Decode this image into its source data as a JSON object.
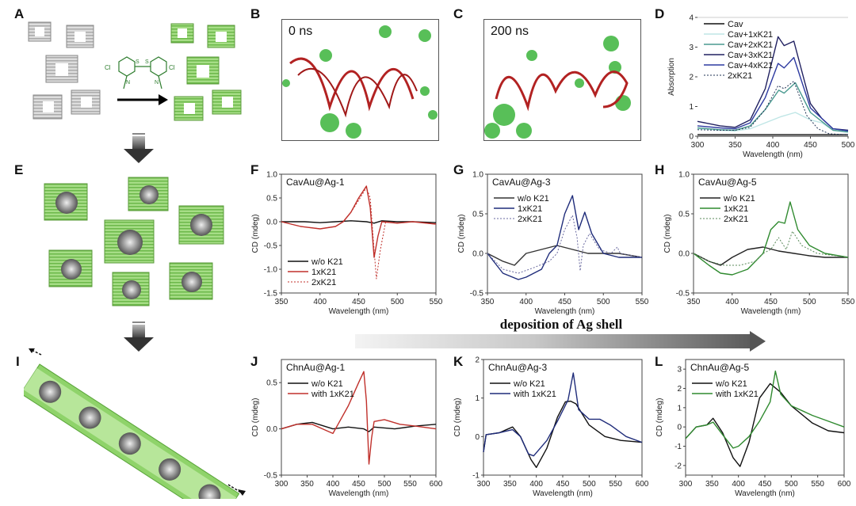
{
  "panel_letters": {
    "A": "A",
    "B": "B",
    "C": "C",
    "D": "D",
    "E": "E",
    "F": "F",
    "G": "G",
    "H": "H",
    "I": "I",
    "J": "J",
    "K": "K",
    "L": "L"
  },
  "simulations": {
    "B": {
      "label": "0 ns"
    },
    "C": {
      "label": "200 ns"
    }
  },
  "molecule": {
    "substituent_left": "Cl",
    "substituent_right": "Cl",
    "heteroatom": "S",
    "nitrogen": "N"
  },
  "deposition_arrow": {
    "label": "deposition of Ag shell"
  },
  "colors": {
    "black": "#111111",
    "red": "#c0302b",
    "navy": "#1f2c7a",
    "green": "#2f8a2f",
    "light_cyan": "#bfe6e6",
    "teal": "#4a9a90",
    "dark_navy": "#202060",
    "blue": "#2d3aa0",
    "green_cube": "#8fd36a"
  },
  "chart_data": [
    {
      "id": "D",
      "type": "line",
      "title": "",
      "xlabel": "Wavelength (nm)",
      "ylabel": "Absorption",
      "xlim": [
        300,
        500
      ],
      "ylim": [
        0,
        4
      ],
      "xticks": [
        300,
        350,
        400,
        450,
        500
      ],
      "yticks": [
        0,
        1,
        2,
        3,
        4
      ],
      "legend_position": "top-left",
      "series": [
        {
          "name": "Cav",
          "color": "#111111",
          "style": "solid",
          "x": [
            300,
            350,
            400,
            450,
            500
          ],
          "y": [
            0.05,
            0.05,
            0.05,
            0.05,
            0.05
          ]
        },
        {
          "name": "Cav+1xK21",
          "color": "#bfe6e6",
          "style": "solid",
          "x": [
            300,
            330,
            350,
            370,
            390,
            410,
            430,
            450,
            465,
            480,
            500
          ],
          "y": [
            0.25,
            0.2,
            0.18,
            0.25,
            0.45,
            0.65,
            0.8,
            0.55,
            0.45,
            0.2,
            0.12
          ]
        },
        {
          "name": "Cav+2xK21",
          "color": "#4a9a90",
          "style": "solid",
          "x": [
            300,
            330,
            350,
            370,
            390,
            408,
            415,
            430,
            450,
            465,
            480,
            500
          ],
          "y": [
            0.28,
            0.22,
            0.2,
            0.35,
            0.9,
            1.55,
            1.45,
            1.8,
            0.8,
            0.5,
            0.2,
            0.15
          ]
        },
        {
          "name": "Cav+3xK21",
          "color": "#202060",
          "style": "solid",
          "x": [
            300,
            330,
            350,
            370,
            390,
            407,
            415,
            428,
            450,
            465,
            480,
            500
          ],
          "y": [
            0.5,
            0.35,
            0.3,
            0.55,
            1.6,
            3.35,
            3.05,
            3.2,
            1.1,
            0.6,
            0.25,
            0.2
          ]
        },
        {
          "name": "Cav+4xK21",
          "color": "#2d3aa0",
          "style": "solid",
          "x": [
            300,
            330,
            350,
            370,
            390,
            407,
            415,
            428,
            450,
            465,
            480,
            500
          ],
          "y": [
            0.35,
            0.28,
            0.25,
            0.45,
            1.3,
            2.45,
            2.3,
            2.65,
            0.95,
            0.6,
            0.25,
            0.18
          ]
        },
        {
          "name": "2xK21",
          "color": "#223355",
          "style": "dotted",
          "x": [
            300,
            330,
            350,
            370,
            390,
            407,
            415,
            428,
            445,
            460,
            475,
            500
          ],
          "y": [
            0.22,
            0.2,
            0.2,
            0.3,
            0.9,
            1.7,
            1.6,
            1.85,
            0.7,
            0.25,
            0.08,
            0.05
          ]
        }
      ]
    },
    {
      "id": "F",
      "type": "line",
      "annotation": "CavAu@Ag-1",
      "xlabel": "Wavelength (nm)",
      "ylabel": "CD (mdeg)",
      "xlim": [
        350,
        550
      ],
      "ylim": [
        -1.5,
        1.0
      ],
      "xticks": [
        350,
        400,
        450,
        500,
        550
      ],
      "yticks": [
        -1.5,
        -1.0,
        -0.5,
        0.0,
        0.5,
        1.0
      ],
      "legend_position": "bottom-left",
      "series": [
        {
          "name": "w/o K21",
          "color": "#111111",
          "style": "solid",
          "x": [
            350,
            380,
            400,
            420,
            440,
            460,
            470,
            480,
            500,
            520,
            550
          ],
          "y": [
            0.0,
            0.0,
            -0.02,
            0.0,
            0.02,
            0.0,
            -0.03,
            0.02,
            0.0,
            0.0,
            -0.02
          ]
        },
        {
          "name": "1xK21",
          "color": "#c0302b",
          "style": "solid",
          "x": [
            350,
            375,
            400,
            420,
            430,
            440,
            450,
            460,
            465,
            470,
            475,
            480,
            500,
            520,
            550
          ],
          "y": [
            0.0,
            -0.1,
            -0.15,
            -0.1,
            0.0,
            0.2,
            0.5,
            0.75,
            0.3,
            -0.75,
            -0.3,
            0.0,
            -0.03,
            0.0,
            -0.05
          ]
        },
        {
          "name": "2xK21",
          "color": "#c0302b",
          "style": "dotted",
          "x": [
            350,
            375,
            400,
            420,
            430,
            440,
            450,
            460,
            465,
            470,
            473,
            478,
            485,
            500,
            520,
            550
          ],
          "y": [
            0.0,
            -0.1,
            -0.15,
            -0.1,
            0.0,
            0.2,
            0.45,
            0.72,
            0.5,
            -0.6,
            -1.2,
            -0.6,
            0.0,
            -0.03,
            0.0,
            -0.05
          ]
        }
      ]
    },
    {
      "id": "G",
      "type": "line",
      "annotation": "CavAu@Ag-3",
      "xlabel": "Wavelength (nm)",
      "ylabel": "CD (mdeg)",
      "xlim": [
        350,
        550
      ],
      "ylim": [
        -0.5,
        1.0
      ],
      "xticks": [
        350,
        400,
        450,
        500,
        550
      ],
      "yticks": [
        -0.5,
        0.0,
        0.5,
        1.0
      ],
      "legend_position": "top-left",
      "series": [
        {
          "name": "w/o K21",
          "color": "#333333",
          "style": "solid",
          "x": [
            350,
            370,
            385,
            400,
            420,
            440,
            460,
            480,
            500,
            520,
            550
          ],
          "y": [
            0.0,
            -0.1,
            -0.15,
            0.0,
            0.05,
            0.1,
            0.05,
            0.0,
            0.0,
            0.0,
            -0.05
          ]
        },
        {
          "name": "1xK21",
          "color": "#1f2c7a",
          "style": "solid",
          "x": [
            350,
            370,
            390,
            400,
            420,
            430,
            440,
            450,
            460,
            468,
            476,
            485,
            500,
            520,
            550
          ],
          "y": [
            0.0,
            -0.25,
            -0.33,
            -0.3,
            -0.2,
            0.0,
            0.1,
            0.5,
            0.73,
            0.3,
            0.52,
            0.25,
            0.0,
            -0.05,
            -0.05
          ]
        },
        {
          "name": "2xK21",
          "color": "#6a6aa0",
          "style": "dotted",
          "x": [
            350,
            370,
            390,
            410,
            430,
            440,
            450,
            460,
            466,
            470,
            474,
            482,
            495,
            510,
            518,
            522,
            550
          ],
          "y": [
            0.0,
            -0.2,
            -0.25,
            -0.18,
            -0.1,
            0.0,
            0.3,
            0.48,
            0.2,
            -0.22,
            0.1,
            0.25,
            0.05,
            0.0,
            0.08,
            0.0,
            -0.05
          ]
        }
      ]
    },
    {
      "id": "H",
      "type": "line",
      "annotation": "CavAu@Ag-5",
      "xlabel": "Wavelength (nm)",
      "ylabel": "CD (mdeg)",
      "xlim": [
        350,
        550
      ],
      "ylim": [
        -0.5,
        1.0
      ],
      "xticks": [
        350,
        400,
        450,
        500,
        550
      ],
      "yticks": [
        -0.5,
        0.0,
        0.5,
        1.0
      ],
      "legend_position": "top-left",
      "series": [
        {
          "name": "w/o K21",
          "color": "#222222",
          "style": "solid",
          "x": [
            350,
            370,
            385,
            400,
            420,
            440,
            460,
            480,
            500,
            520,
            550
          ],
          "y": [
            0.0,
            -0.1,
            -0.15,
            -0.05,
            0.05,
            0.08,
            0.03,
            0.0,
            -0.03,
            -0.05,
            -0.05
          ]
        },
        {
          "name": "1xK21",
          "color": "#2f8a2f",
          "style": "solid",
          "x": [
            350,
            370,
            385,
            400,
            420,
            440,
            450,
            460,
            468,
            475,
            485,
            500,
            520,
            550
          ],
          "y": [
            0.0,
            -0.15,
            -0.25,
            -0.27,
            -0.2,
            0.0,
            0.3,
            0.4,
            0.38,
            0.65,
            0.3,
            0.1,
            0.0,
            -0.05
          ]
        },
        {
          "name": "2xK21",
          "color": "#5a8a5a",
          "style": "dotted",
          "x": [
            350,
            370,
            390,
            410,
            430,
            440,
            450,
            460,
            470,
            478,
            490,
            510,
            550
          ],
          "y": [
            0.0,
            -0.1,
            -0.15,
            -0.15,
            -0.1,
            0.0,
            0.05,
            0.2,
            0.05,
            0.28,
            0.1,
            0.0,
            -0.05
          ]
        }
      ]
    },
    {
      "id": "J",
      "type": "line",
      "annotation": "ChnAu@Ag-1",
      "xlabel": "Wavelength (nm)",
      "ylabel": "CD (mdeg)",
      "xlim": [
        300,
        600
      ],
      "ylim": [
        -0.5,
        0.75
      ],
      "xticks": [
        300,
        350,
        400,
        450,
        500,
        550,
        600
      ],
      "yticks": [
        -0.5,
        0.0,
        0.5
      ],
      "legend_position": "top-left",
      "series": [
        {
          "name": "w/o K21",
          "color": "#111111",
          "style": "solid",
          "x": [
            300,
            330,
            360,
            400,
            430,
            460,
            470,
            480,
            520,
            560,
            600
          ],
          "y": [
            0.0,
            0.05,
            0.07,
            0.0,
            0.02,
            0.0,
            -0.03,
            0.02,
            0.0,
            0.03,
            0.05
          ]
        },
        {
          "name": "with 1xK21",
          "color": "#c0302b",
          "style": "solid",
          "x": [
            300,
            330,
            360,
            380,
            400,
            410,
            430,
            450,
            460,
            465,
            470,
            475,
            480,
            500,
            530,
            560,
            600
          ],
          "y": [
            0.0,
            0.05,
            0.05,
            0.0,
            -0.05,
            0.05,
            0.25,
            0.5,
            0.62,
            0.3,
            -0.38,
            -0.1,
            0.08,
            0.1,
            0.05,
            0.03,
            0.0
          ]
        }
      ]
    },
    {
      "id": "K",
      "type": "line",
      "annotation": "ChnAu@Ag-3",
      "xlabel": "Wavelength (nm)",
      "ylabel": "CD (mdeg)",
      "xlim": [
        300,
        600
      ],
      "ylim": [
        -1,
        2
      ],
      "xticks": [
        300,
        350,
        400,
        450,
        500,
        550,
        600
      ],
      "yticks": [
        -1,
        0,
        1,
        2
      ],
      "legend_position": "top-left",
      "series": [
        {
          "name": "w/o K21",
          "color": "#111111",
          "style": "solid",
          "x": [
            300,
            305,
            330,
            355,
            370,
            390,
            400,
            420,
            440,
            455,
            465,
            475,
            500,
            530,
            560,
            600
          ],
          "y": [
            -0.4,
            0.05,
            0.1,
            0.25,
            0.0,
            -0.6,
            -0.8,
            -0.3,
            0.5,
            0.9,
            0.92,
            0.85,
            0.3,
            0.0,
            -0.1,
            -0.15
          ]
        },
        {
          "name": "with 1xK21",
          "color": "#1f2c7a",
          "style": "solid",
          "x": [
            300,
            305,
            330,
            355,
            370,
            385,
            395,
            420,
            440,
            460,
            470,
            480,
            500,
            520,
            540,
            570,
            600
          ],
          "y": [
            -0.4,
            0.05,
            0.1,
            0.18,
            0.0,
            -0.45,
            -0.5,
            -0.1,
            0.4,
            0.95,
            1.65,
            0.7,
            0.45,
            0.45,
            0.3,
            0.0,
            -0.15
          ]
        }
      ]
    },
    {
      "id": "L",
      "type": "line",
      "annotation": "ChnAu@Ag-5",
      "xlabel": "Wavelength (nm)",
      "ylabel": "CD (mdeg)",
      "xlim": [
        300,
        600
      ],
      "ylim": [
        -2.5,
        3.5
      ],
      "xticks": [
        300,
        350,
        400,
        450,
        500,
        550,
        600
      ],
      "yticks": [
        -2,
        -1,
        0,
        1,
        2,
        3
      ],
      "legend_position": "top-left",
      "series": [
        {
          "name": "w/o K21",
          "color": "#111111",
          "style": "solid",
          "x": [
            300,
            320,
            340,
            352,
            370,
            390,
            403,
            420,
            440,
            460,
            480,
            500,
            540,
            570,
            600
          ],
          "y": [
            -0.6,
            0.0,
            0.1,
            0.45,
            -0.3,
            -1.6,
            -2.05,
            -0.8,
            1.5,
            2.25,
            1.8,
            1.1,
            0.2,
            -0.2,
            -0.3
          ]
        },
        {
          "name": "with 1xK21",
          "color": "#2f8a2f",
          "style": "solid",
          "x": [
            300,
            320,
            340,
            352,
            370,
            390,
            400,
            420,
            440,
            460,
            470,
            480,
            500,
            540,
            570,
            600
          ],
          "y": [
            -0.6,
            0.0,
            0.1,
            0.25,
            -0.4,
            -1.1,
            -1.0,
            -0.5,
            0.3,
            1.3,
            2.9,
            1.7,
            1.1,
            0.6,
            0.3,
            0.0
          ]
        }
      ]
    }
  ]
}
